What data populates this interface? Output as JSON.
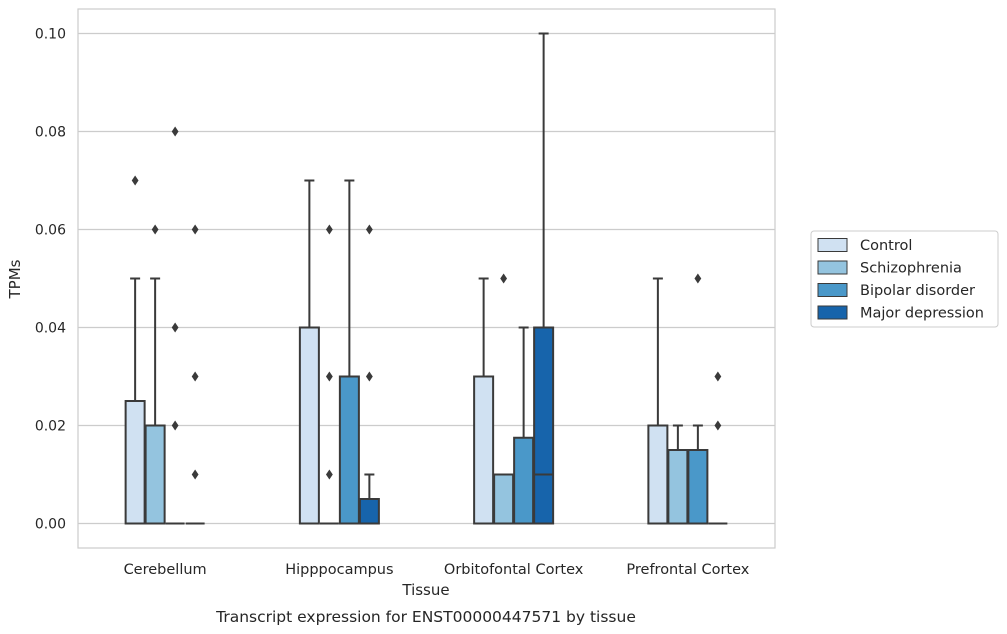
{
  "chart_data": {
    "type": "box",
    "caption": "Transcript expression for ENST00000447571 by tissue",
    "xlabel": "Tissue",
    "ylabel": "TPMs",
    "ylim": [
      -0.005,
      0.105
    ],
    "yticks": [
      0.0,
      0.02,
      0.04,
      0.06,
      0.08,
      0.1
    ],
    "ytick_labels": [
      "0.00",
      "0.02",
      "0.04",
      "0.06",
      "0.08",
      "0.10"
    ],
    "grid": true,
    "legend_position": "right",
    "categories": [
      "Cerebellum",
      "Hipppocampus",
      "Orbitofontal Cortex",
      "Prefrontal Cortex"
    ],
    "series": [
      {
        "name": "Control",
        "color": "#d0e1f2",
        "boxes": [
          {
            "q1": 0.0,
            "median": 0.0,
            "q3": 0.025,
            "whisker_low": 0.0,
            "whisker_high": 0.05,
            "outliers": [
              0.07
            ]
          },
          {
            "q1": 0.0,
            "median": 0.0,
            "q3": 0.04,
            "whisker_low": 0.0,
            "whisker_high": 0.07,
            "outliers": []
          },
          {
            "q1": 0.0,
            "median": 0.0,
            "q3": 0.03,
            "whisker_low": 0.0,
            "whisker_high": 0.05,
            "outliers": []
          },
          {
            "q1": 0.0,
            "median": 0.0,
            "q3": 0.02,
            "whisker_low": 0.0,
            "whisker_high": 0.05,
            "outliers": []
          }
        ]
      },
      {
        "name": "Schizophrenia",
        "color": "#94c4df",
        "boxes": [
          {
            "q1": 0.0,
            "median": 0.0,
            "q3": 0.02,
            "whisker_low": 0.0,
            "whisker_high": 0.05,
            "outliers": [
              0.06
            ]
          },
          {
            "q1": 0.0,
            "median": 0.0,
            "q3": 0.0,
            "whisker_low": 0.0,
            "whisker_high": 0.0,
            "outliers": [
              0.01,
              0.03,
              0.06
            ]
          },
          {
            "q1": 0.0,
            "median": 0.0,
            "q3": 0.01,
            "whisker_low": 0.0,
            "whisker_high": 0.01,
            "outliers": [
              0.05
            ]
          },
          {
            "q1": 0.0,
            "median": 0.0,
            "q3": 0.015,
            "whisker_low": 0.0,
            "whisker_high": 0.02,
            "outliers": []
          }
        ]
      },
      {
        "name": "Bipolar disorder",
        "color": "#4a98c9",
        "boxes": [
          {
            "q1": 0.0,
            "median": 0.0,
            "q3": 0.0,
            "whisker_low": 0.0,
            "whisker_high": 0.0,
            "outliers": [
              0.02,
              0.04,
              0.08
            ]
          },
          {
            "q1": 0.0,
            "median": 0.0,
            "q3": 0.03,
            "whisker_low": 0.0,
            "whisker_high": 0.07,
            "outliers": []
          },
          {
            "q1": 0.0,
            "median": 0.0,
            "q3": 0.0175,
            "whisker_low": 0.0,
            "whisker_high": 0.04,
            "outliers": []
          },
          {
            "q1": 0.0,
            "median": 0.0,
            "q3": 0.015,
            "whisker_low": 0.0,
            "whisker_high": 0.02,
            "outliers": [
              0.05
            ]
          }
        ]
      },
      {
        "name": "Major depression",
        "color": "#1764ab",
        "boxes": [
          {
            "q1": 0.0,
            "median": 0.0,
            "q3": 0.0,
            "whisker_low": 0.0,
            "whisker_high": 0.0,
            "outliers": [
              0.01,
              0.03,
              0.06
            ]
          },
          {
            "q1": 0.0,
            "median": 0.0,
            "q3": 0.005,
            "whisker_low": 0.0,
            "whisker_high": 0.01,
            "outliers": [
              0.03,
              0.06
            ]
          },
          {
            "q1": 0.0,
            "median": 0.01,
            "q3": 0.04,
            "whisker_low": 0.0,
            "whisker_high": 0.1,
            "outliers": []
          },
          {
            "q1": 0.0,
            "median": 0.0,
            "q3": 0.0,
            "whisker_low": 0.0,
            "whisker_high": 0.0,
            "outliers": [
              0.02,
              0.03
            ]
          }
        ]
      }
    ]
  }
}
